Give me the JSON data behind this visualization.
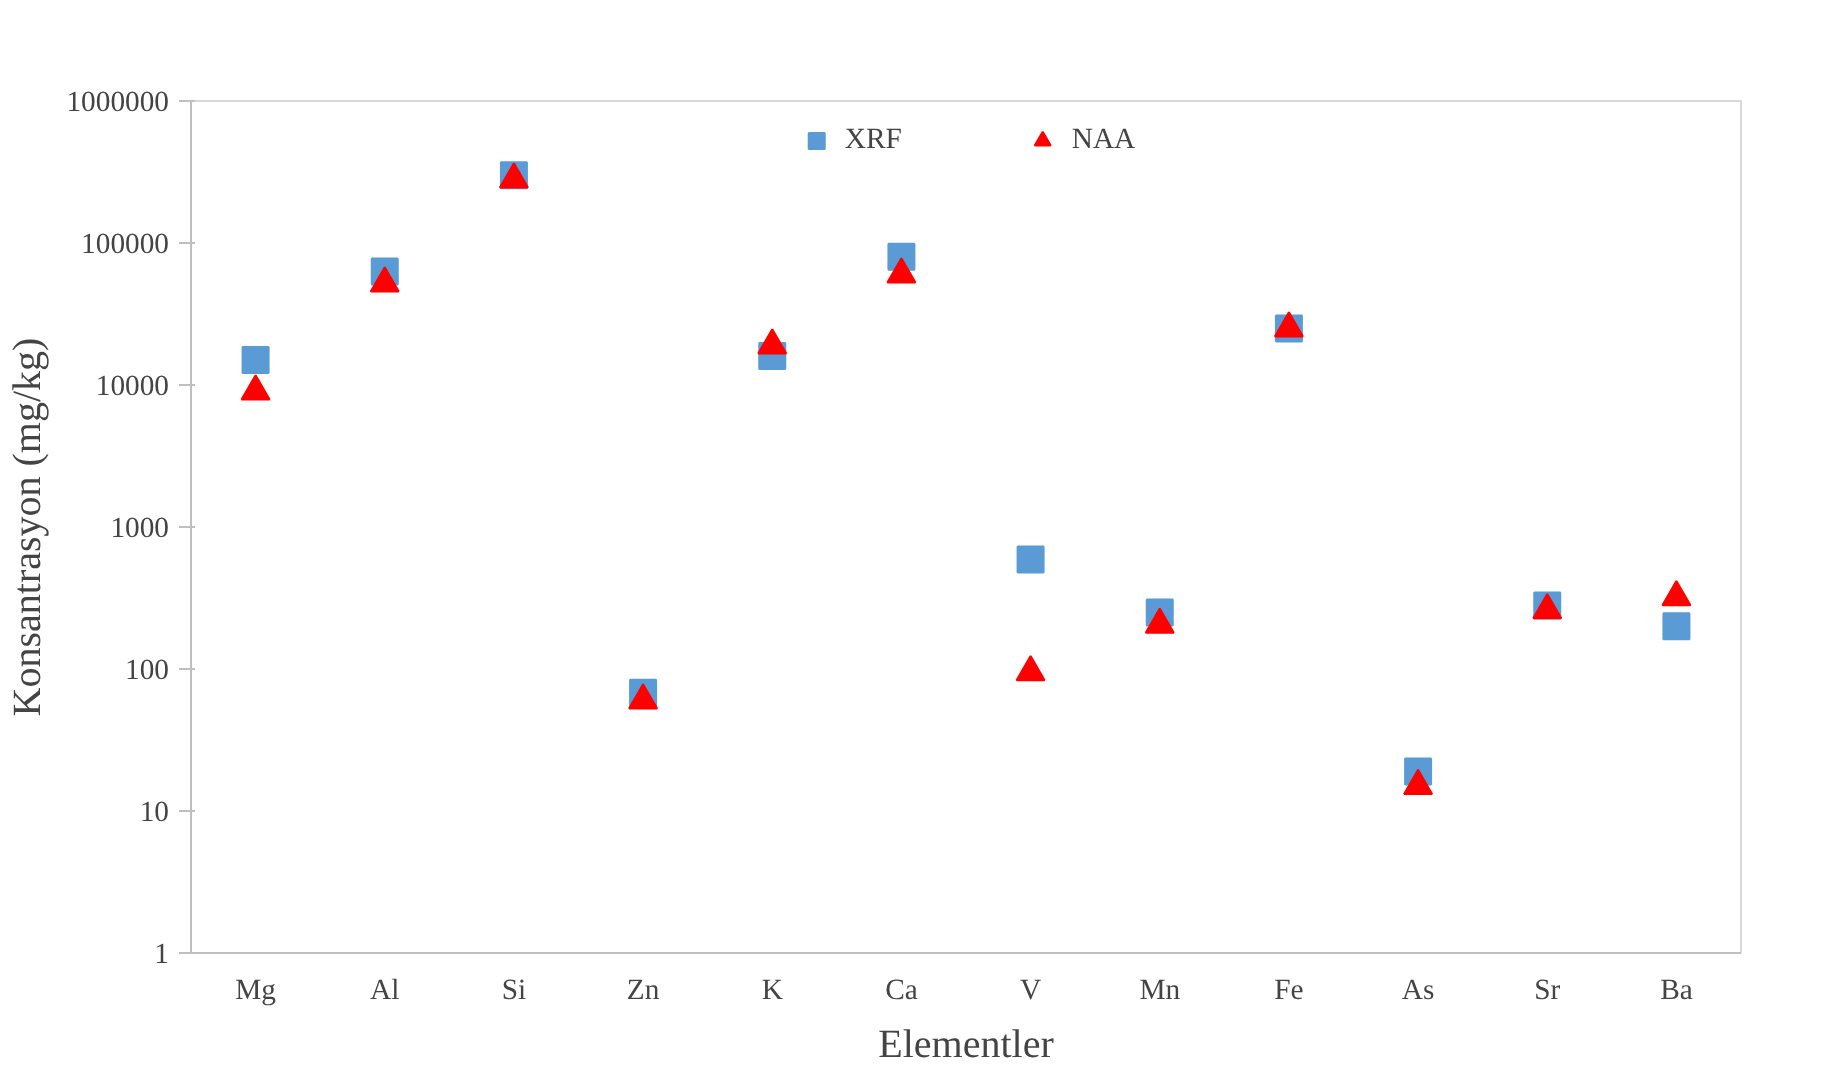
{
  "chart_data": {
    "type": "scatter",
    "xlabel": "Elementler",
    "ylabel": "Konsantrasyon (mg/kg)",
    "categories": [
      "Mg",
      "Al",
      "Si",
      "Zn",
      "K",
      "Ca",
      "V",
      "Mn",
      "Fe",
      "As",
      "Sr",
      "Ba"
    ],
    "series": [
      {
        "name": "XRF",
        "color": "#5b9bd5",
        "marker": "square",
        "values": [
          15000,
          63000,
          300000,
          68,
          16000,
          80000,
          590,
          250,
          25000,
          19,
          280,
          200
        ]
      },
      {
        "name": "NAA",
        "color": "#ff0000",
        "marker": "triangle",
        "values": [
          9000,
          52000,
          280000,
          60,
          19000,
          60000,
          95,
          205,
          25000,
          15,
          260,
          320
        ]
      }
    ],
    "log": "y",
    "ylim": [
      1,
      1000000
    ],
    "yticks": [
      1,
      10,
      100,
      1000,
      10000,
      100000,
      1000000
    ],
    "grid": false,
    "legend": "top"
  }
}
